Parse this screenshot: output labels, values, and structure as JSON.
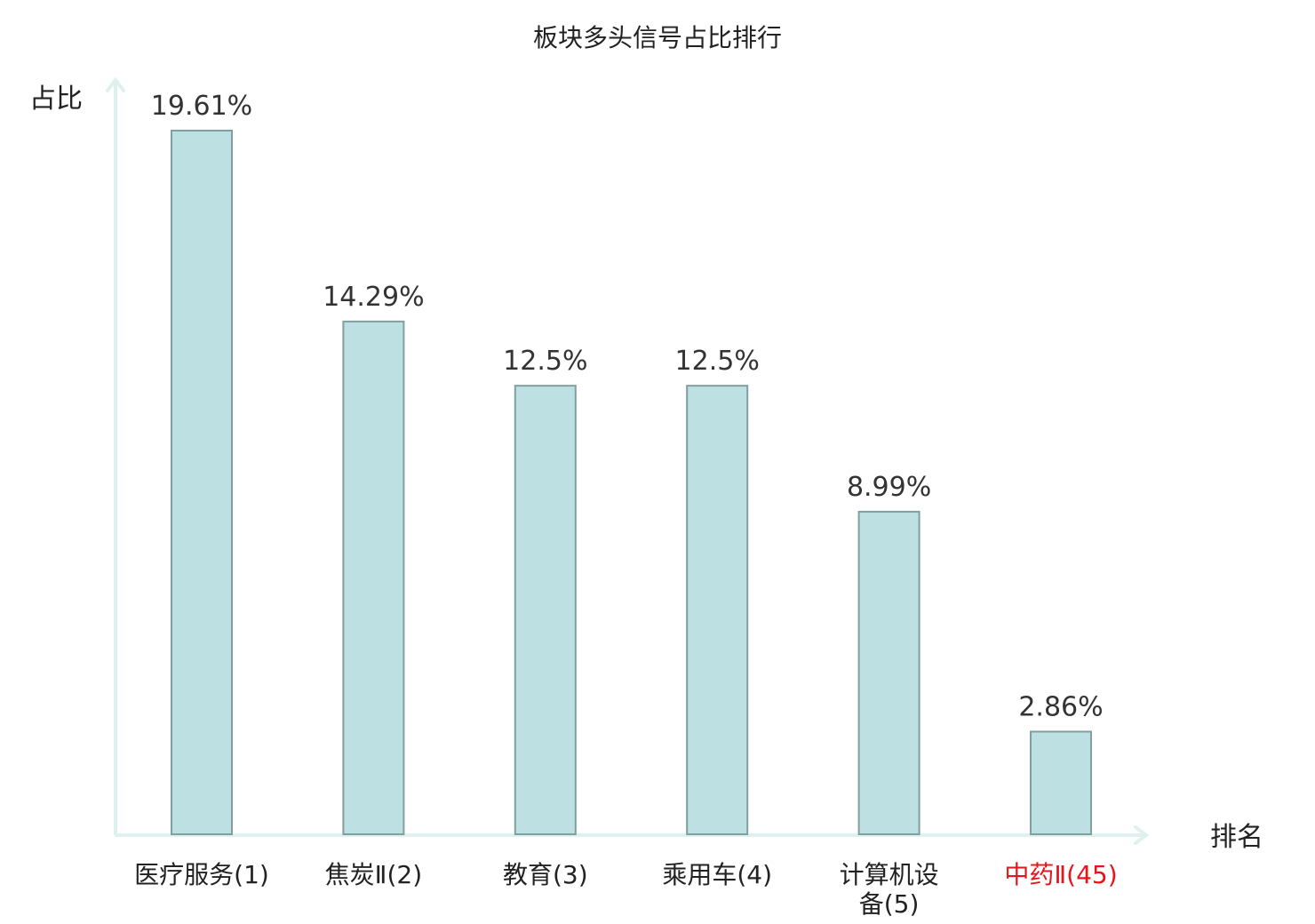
{
  "chart_data": {
    "type": "bar",
    "title": "板块多头信号占比排行",
    "xlabel": "排名",
    "ylabel": "占比",
    "categories": [
      "医疗服务(1)",
      "焦炭Ⅱ(2)",
      "教育(3)",
      "乘用车(4)",
      "计算机设备(5)",
      "中药Ⅱ(45)"
    ],
    "category_lines": [
      [
        "医疗服务(1)"
      ],
      [
        "焦炭Ⅱ(2)"
      ],
      [
        "教育(3)"
      ],
      [
        "乘用车(4)"
      ],
      [
        "计算机设",
        "备(5)"
      ],
      [
        "中药Ⅱ(45)"
      ]
    ],
    "values": [
      19.61,
      14.29,
      12.5,
      12.5,
      8.99,
      2.86
    ],
    "data_labels": [
      "19.61%",
      "14.29%",
      "12.5%",
      "12.5%",
      "8.99%",
      "2.86%"
    ],
    "highlight_index": 5,
    "ylim": [
      0,
      19.61
    ],
    "grid": false,
    "colors": {
      "bar_fill": "#bde0e2",
      "bar_stroke": "#7f9fa1",
      "axis": "#dff1ef",
      "text": "#333333",
      "highlight_text": "#e8141b"
    }
  }
}
